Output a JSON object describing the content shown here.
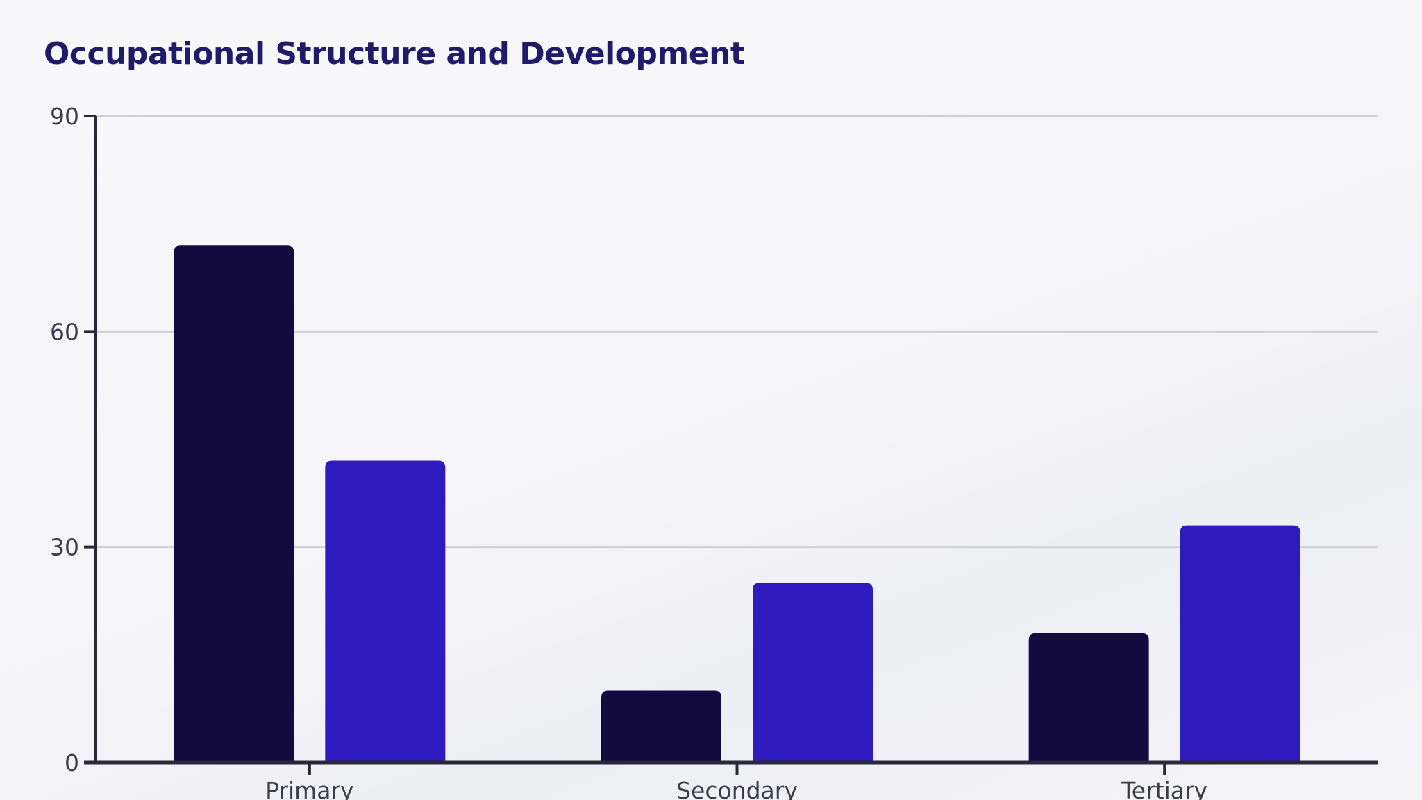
{
  "chart_data": {
    "type": "bar",
    "title": "Occupational Structure and Development",
    "xlabel": "",
    "ylabel": "",
    "categories": [
      "Primary",
      "Secondary",
      "Tertiary"
    ],
    "series": [
      {
        "values": [
          72,
          10,
          18
        ]
      },
      {
        "values": [
          42,
          25,
          33
        ]
      }
    ],
    "ylim": [
      0,
      90
    ],
    "yticks": [
      0,
      30,
      60,
      90
    ],
    "grid": true,
    "legend": "none",
    "colors": [
      "#130b40",
      "#2e1bbd"
    ],
    "axis_color": "#2a2838",
    "grid_color": "#cfced6"
  }
}
